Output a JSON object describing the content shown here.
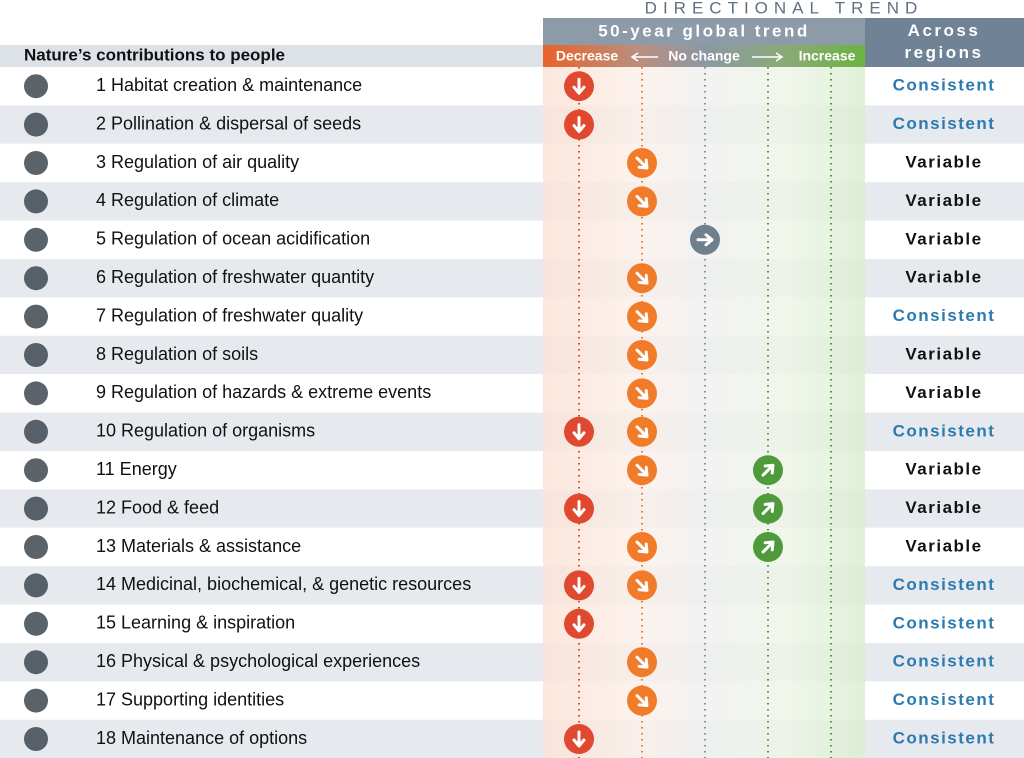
{
  "header": {
    "super_title": "DIRECTIONAL TREND",
    "trend_title": "50-year global trend",
    "regions_title": "Across regions",
    "left_title": "Nature’s contributions to people",
    "decrease": "Decrease",
    "no_change": "No change",
    "increase": "Increase"
  },
  "trend_colors": [
    "#e0492f",
    "#f07c2a",
    "#6e7f8d",
    "#4f9a3a",
    "#4f9a3a"
  ],
  "rows": [
    {
      "label": "1 Habitat creation & maintenance",
      "trends": [
        -2
      ],
      "across": "Consistent",
      "across_color": "#2b7ab0"
    },
    {
      "label": "2 Pollination & dispersal of seeds",
      "trends": [
        -2
      ],
      "across": "Consistent",
      "across_color": "#2b7ab0"
    },
    {
      "label": "3 Regulation of air quality",
      "trends": [
        -1
      ],
      "across": "Variable",
      "across_color": "#111111"
    },
    {
      "label": "4 Regulation of climate",
      "trends": [
        -1
      ],
      "across": "Variable",
      "across_color": "#111111"
    },
    {
      "label": "5 Regulation of ocean acidification",
      "trends": [
        0
      ],
      "across": "Variable",
      "across_color": "#111111"
    },
    {
      "label": "6 Regulation of freshwater quantity",
      "trends": [
        -1
      ],
      "across": "Variable",
      "across_color": "#111111"
    },
    {
      "label": "7 Regulation of freshwater quality",
      "trends": [
        -1
      ],
      "across": "Consistent",
      "across_color": "#2b7ab0"
    },
    {
      "label": "8 Regulation of soils",
      "trends": [
        -1
      ],
      "across": "Variable",
      "across_color": "#111111"
    },
    {
      "label": "9 Regulation of hazards & extreme events",
      "trends": [
        -1
      ],
      "across": "Variable",
      "across_color": "#111111"
    },
    {
      "label": "10 Regulation of organisms",
      "trends": [
        -2,
        -1
      ],
      "across": "Consistent",
      "across_color": "#2b7ab0"
    },
    {
      "label": "11 Energy",
      "trends": [
        -1,
        1
      ],
      "across": "Variable",
      "across_color": "#111111"
    },
    {
      "label": "12 Food & feed",
      "trends": [
        -2,
        1
      ],
      "across": "Variable",
      "across_color": "#111111"
    },
    {
      "label": "13 Materials & assistance",
      "trends": [
        -1,
        1
      ],
      "across": "Variable",
      "across_color": "#111111"
    },
    {
      "label": "14 Medicinal, biochemical, & genetic resources",
      "trends": [
        -2,
        -1
      ],
      "across": "Consistent",
      "across_color": "#2b7ab0"
    },
    {
      "label": "15 Learning & inspiration",
      "trends": [
        -2
      ],
      "across": "Consistent",
      "across_color": "#2b7ab0"
    },
    {
      "label": "16 Physical & psychological experiences",
      "trends": [
        -1
      ],
      "across": "Consistent",
      "across_color": "#2b7ab0"
    },
    {
      "label": "17 Supporting identities",
      "trends": [
        -1
      ],
      "across": "Consistent",
      "across_color": "#2b7ab0"
    },
    {
      "label": "18 Maintenance of options",
      "trends": [
        -2
      ],
      "across": "Consistent",
      "across_color": "#2b7ab0"
    }
  ]
}
